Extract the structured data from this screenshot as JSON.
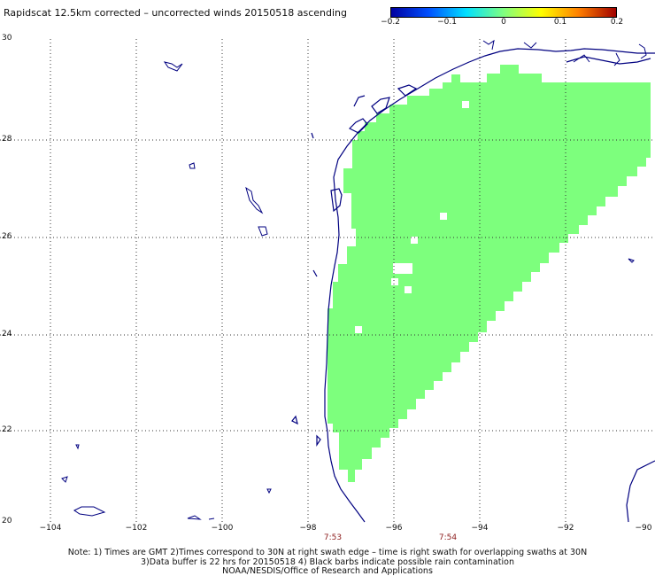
{
  "title": "Rapidscat 12.5km corrected – uncorrected winds 20150518 ascending",
  "colorbar": {
    "ticks": [
      "−0.2",
      "−0.1",
      "0",
      "0.1",
      "0.2"
    ],
    "range": [
      -0.2,
      0.2
    ],
    "colors": [
      "#0000a0",
      "#0050ff",
      "#00e0ff",
      "#80ff80",
      "#ffff00",
      "#ff8000",
      "#a00000"
    ]
  },
  "axes": {
    "lon_ticks": [
      "−104",
      "−102",
      "−100",
      "−98",
      "−96",
      "−94",
      "−92",
      "−90"
    ],
    "lat_ticks": [
      "30",
      "28",
      "26",
      "24",
      "22",
      "20"
    ],
    "lon_range": [
      -105,
      -90
    ],
    "lat_range": [
      20,
      30
    ]
  },
  "swath": {
    "value": 0,
    "color": "#7dff7d",
    "corners_lonlat": [
      [
        -97.6,
        24.3
      ],
      [
        -96.5,
        28.3
      ],
      [
        -94.2,
        29.4
      ],
      [
        -90,
        29.3
      ],
      [
        -90,
        28.0
      ],
      [
        -91.8,
        26.6
      ],
      [
        -94.0,
        24.0
      ],
      [
        -96.0,
        21.6
      ],
      [
        -96.9,
        20.9
      ],
      [
        -97.6,
        21.6
      ]
    ]
  },
  "times": [
    {
      "label": "7:53",
      "lon": -97.6
    },
    {
      "label": "7:54",
      "lon": -94.7
    }
  ],
  "notes": [
    "Note: 1) Times are GMT 2)Times correspond to 30N at right swath edge – time is right swath for overlapping swaths at 30N",
    "3)Data buffer is 22 hrs for 20150518 4) Black barbs indicate possible rain contamination",
    "NOAA/NESDIS/Office of Research and Applications"
  ]
}
